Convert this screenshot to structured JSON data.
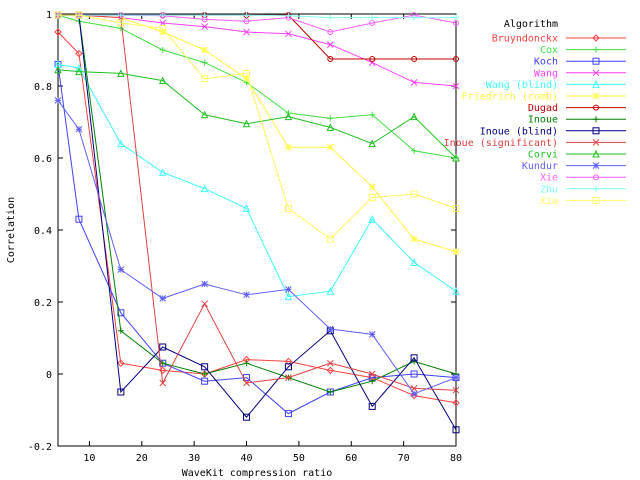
{
  "chart_data": {
    "type": "line",
    "title": "",
    "xlabel": "WaveKit compression ratio",
    "ylabel": "Correlation",
    "xlim": [
      4,
      80
    ],
    "ylim": [
      -0.2,
      1.0
    ],
    "xticks": [
      10,
      20,
      30,
      40,
      50,
      60,
      70,
      80
    ],
    "yticks": [
      -0.2,
      0,
      0.2,
      0.4,
      0.6,
      0.8,
      1
    ],
    "xtick_labels": [
      "10",
      "20",
      "30",
      "40",
      "50",
      "60",
      "70",
      "80"
    ],
    "ytick_labels": [
      "-0.2",
      "0",
      "0.2",
      "0.4",
      "0.6",
      "0.8",
      "1"
    ],
    "grid": false,
    "legend_title": "Algorithm",
    "legend_placement": "right",
    "series": [
      {
        "name": "Bruyndonckx",
        "color": "#ff4040",
        "marker": "diamond",
        "x": [
          4,
          8,
          16,
          24,
          32,
          40,
          48,
          56,
          64,
          72,
          80
        ],
        "y": [
          0.95,
          0.89,
          0.03,
          0.01,
          0.0,
          0.04,
          0.035,
          0.01,
          -0.01,
          -0.06,
          -0.08
        ]
      },
      {
        "name": "Cox",
        "color": "#40e040",
        "marker": "plus",
        "x": [
          4,
          8,
          16,
          24,
          32,
          40,
          48,
          56,
          64,
          72,
          80
        ],
        "y": [
          0.997,
          0.98,
          0.96,
          0.9,
          0.865,
          0.81,
          0.725,
          0.71,
          0.72,
          0.62,
          0.6
        ]
      },
      {
        "name": "Koch",
        "color": "#4040ff",
        "marker": "square",
        "x": [
          4,
          8,
          16,
          24,
          32,
          40,
          48,
          56,
          64,
          72,
          80
        ],
        "y": [
          0.86,
          0.43,
          0.17,
          0.03,
          -0.02,
          -0.01,
          -0.11,
          -0.05,
          -0.01,
          0.0,
          -0.01
        ]
      },
      {
        "name": "Wang",
        "color": "#ff40ff",
        "marker": "x",
        "x": [
          4,
          8,
          16,
          24,
          32,
          40,
          48,
          56,
          64,
          72,
          80
        ],
        "y": [
          0.997,
          0.997,
          0.99,
          0.975,
          0.965,
          0.95,
          0.945,
          0.915,
          0.865,
          0.81,
          0.8
        ]
      },
      {
        "name": "Wang (blind)",
        "color": "#40ffff",
        "marker": "triangle",
        "x": [
          4,
          8,
          16,
          24,
          32,
          40,
          48,
          56,
          64,
          72,
          80
        ],
        "y": [
          0.86,
          0.85,
          0.64,
          0.56,
          0.515,
          0.46,
          0.215,
          0.23,
          0.43,
          0.31,
          0.23
        ]
      },
      {
        "name": "Friedrich (comb)",
        "color": "#ffff40",
        "marker": "asterisk",
        "x": [
          4,
          8,
          16,
          24,
          32,
          40,
          48,
          56,
          64,
          72,
          80
        ],
        "y": [
          0.997,
          0.997,
          0.99,
          0.95,
          0.9,
          0.82,
          0.63,
          0.63,
          0.52,
          0.375,
          0.34
        ]
      },
      {
        "name": "Dugad",
        "color": "#c00000",
        "marker": "dot",
        "x": [
          4,
          8,
          16,
          24,
          32,
          40,
          48,
          56,
          64,
          72,
          80
        ],
        "y": [
          0.997,
          0.997,
          0.997,
          0.997,
          0.997,
          0.997,
          0.997,
          0.875,
          0.875,
          0.875,
          0.875
        ]
      },
      {
        "name": "Inoue",
        "color": "#008000",
        "marker": "plus",
        "x": [
          4,
          8,
          16,
          24,
          32,
          40,
          48,
          56,
          64,
          72,
          80
        ],
        "y": [
          0.997,
          0.997,
          0.12,
          0.03,
          0.0,
          0.03,
          -0.01,
          -0.05,
          -0.02,
          0.035,
          0.0
        ]
      },
      {
        "name": "Inoue (blind)",
        "color": "#000080",
        "marker": "square",
        "x": [
          4,
          8,
          16,
          24,
          32,
          40,
          48,
          56,
          64,
          72,
          80
        ],
        "y": [
          0.997,
          0.997,
          -0.05,
          0.075,
          0.02,
          -0.12,
          0.02,
          0.12,
          -0.09,
          0.045,
          -0.155
        ]
      },
      {
        "name": "Inoue (significant)",
        "color": "#e04040",
        "marker": "x",
        "x": [
          4,
          8,
          16,
          24,
          32,
          40,
          48,
          56,
          64,
          72,
          80
        ],
        "y": [
          0.997,
          0.997,
          0.99,
          -0.025,
          0.195,
          -0.025,
          -0.01,
          0.03,
          0.0,
          -0.04,
          -0.045
        ]
      },
      {
        "name": "Corvi",
        "color": "#20c020",
        "marker": "triangle",
        "x": [
          4,
          8,
          16,
          24,
          32,
          40,
          48,
          56,
          64,
          72,
          80
        ],
        "y": [
          0.845,
          0.84,
          0.835,
          0.815,
          0.72,
          0.695,
          0.715,
          0.685,
          0.64,
          0.715,
          0.6
        ]
      },
      {
        "name": "Kundur",
        "color": "#6060ff",
        "marker": "asterisk",
        "x": [
          4,
          8,
          16,
          24,
          32,
          40,
          48,
          56,
          64,
          72,
          80
        ],
        "y": [
          0.76,
          0.68,
          0.29,
          0.21,
          0.25,
          0.22,
          0.235,
          0.125,
          0.11,
          -0.055,
          -0.01
        ]
      },
      {
        "name": "Xie",
        "color": "#ff60ff",
        "marker": "dot",
        "x": [
          4,
          8,
          16,
          24,
          32,
          40,
          48,
          56,
          64,
          72,
          80
        ],
        "y": [
          0.997,
          0.997,
          0.997,
          0.995,
          0.985,
          0.98,
          0.99,
          0.95,
          0.975,
          0.997,
          0.975
        ]
      },
      {
        "name": "Zhu",
        "color": "#80ffff",
        "marker": "plus",
        "x": [
          4,
          8,
          16,
          24,
          32,
          40,
          48,
          56,
          64,
          72,
          80
        ],
        "y": [
          0.997,
          0.997,
          0.997,
          0.997,
          0.997,
          0.997,
          0.995,
          0.99,
          0.99,
          0.99,
          0.99
        ]
      },
      {
        "name": "Xia",
        "color": "#ffff60",
        "marker": "square",
        "x": [
          4,
          8,
          16,
          24,
          32,
          40,
          48,
          56,
          64,
          72,
          80
        ],
        "y": [
          0.997,
          0.997,
          0.975,
          0.96,
          0.82,
          0.835,
          0.46,
          0.375,
          0.49,
          0.5,
          0.46
        ]
      }
    ]
  }
}
